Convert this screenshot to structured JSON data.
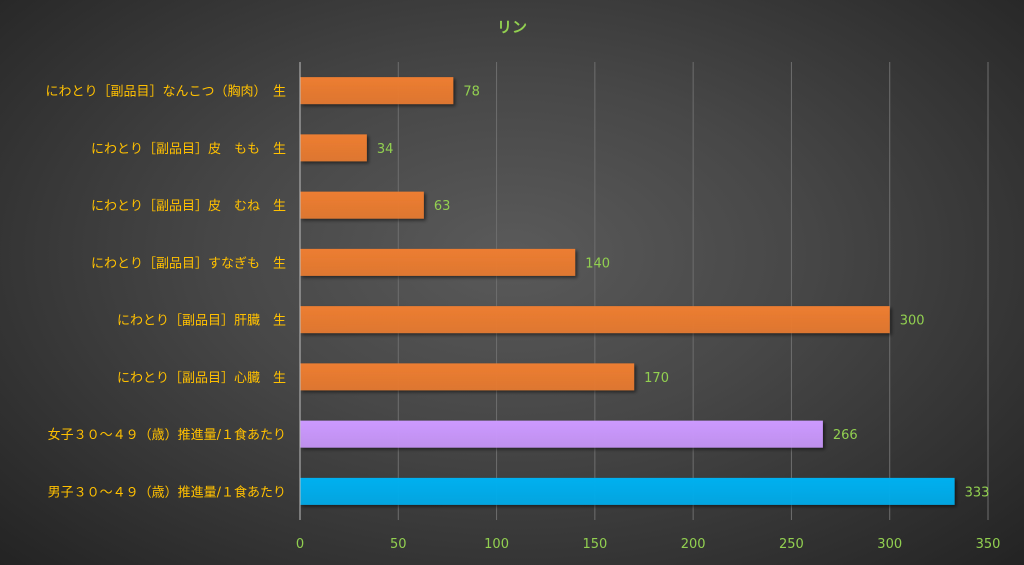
{
  "chart_data": {
    "type": "bar",
    "orientation": "horizontal",
    "title": "リン",
    "categories": [
      "にわとり［副品目］なんこつ（胸肉）　生",
      "にわとり［副品目］皮　もも　生",
      "にわとり［副品目］皮　むね　生",
      "にわとり［副品目］すなぎも　生",
      "にわとり［副品目］肝臓　生",
      "にわとり［副品目］心臓　生",
      "女子３０～４９（歳）推進量/１食あたり",
      "男子３０～４９（歳）推進量/１食あたり"
    ],
    "values": [
      78,
      34,
      63,
      140,
      300,
      170,
      266,
      333
    ],
    "bar_colors": [
      "#ED7D31",
      "#ED7D31",
      "#ED7D31",
      "#ED7D31",
      "#ED7D31",
      "#ED7D31",
      "#CC99FF",
      "#00B0F0"
    ],
    "x_ticks": [
      "0",
      "50",
      "100",
      "150",
      "200",
      "250",
      "300",
      "350"
    ],
    "xlim": [
      0,
      350
    ],
    "grid": true,
    "data_labels": true,
    "colors": {
      "title": "#92D050",
      "category_labels": "#FFC000",
      "value_labels": "#92D050",
      "tick_labels": "#92D050",
      "gridlines": "#6E6E6E",
      "axis": "#BFBFBF"
    }
  }
}
